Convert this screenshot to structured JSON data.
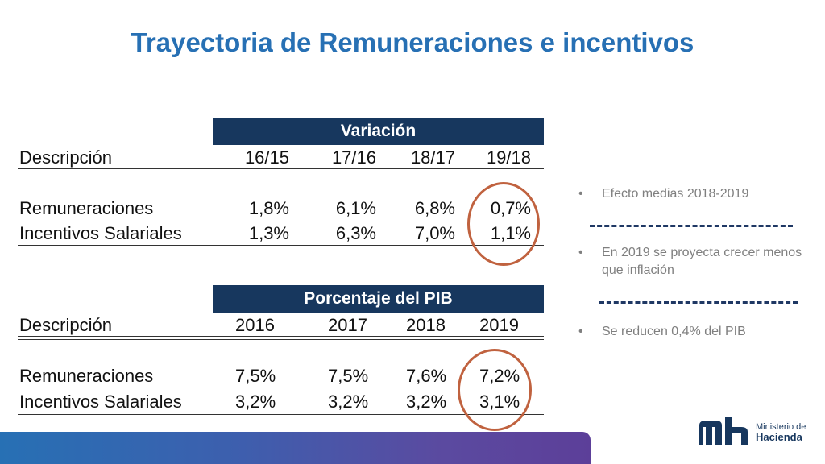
{
  "title": "Trayectoria de Remuneraciones e incentivos",
  "table1": {
    "header": "Variación",
    "columns": [
      "Descripción",
      "16/15",
      "17/16",
      "18/17",
      "19/18"
    ],
    "rows": [
      {
        "label": "Remuneraciones",
        "values": [
          "1,8%",
          "6,1%",
          "6,8%",
          "0,7%"
        ]
      },
      {
        "label": "Incentivos Salariales",
        "values": [
          "1,3%",
          "6,3%",
          "7,0%",
          "1,1%"
        ]
      }
    ]
  },
  "table2": {
    "header": "Porcentaje del PIB",
    "columns": [
      "Descripción",
      "2016",
      "2017",
      "2018",
      "2019"
    ],
    "rows": [
      {
        "label": "Remuneraciones",
        "values": [
          "7,5%",
          "7,5%",
          "7,6%",
          "7,2%"
        ]
      },
      {
        "label": "Incentivos Salariales",
        "values": [
          "3,2%",
          "3,2%",
          "3,2%",
          "3,1%"
        ]
      }
    ]
  },
  "bullets": [
    "Efecto medias 2018-2019",
    "En 2019 se proyecta crecer menos que inflación",
    "Se reducen 0,4% del PIB"
  ],
  "bullet_marker": "•",
  "logo": {
    "line1": "Ministerio de",
    "line2": "Hacienda"
  },
  "colors": {
    "title": "#2770b4",
    "table_header": "#17375e",
    "highlight_circle": "#c0623f",
    "bullet_text": "#7f7f7f"
  }
}
